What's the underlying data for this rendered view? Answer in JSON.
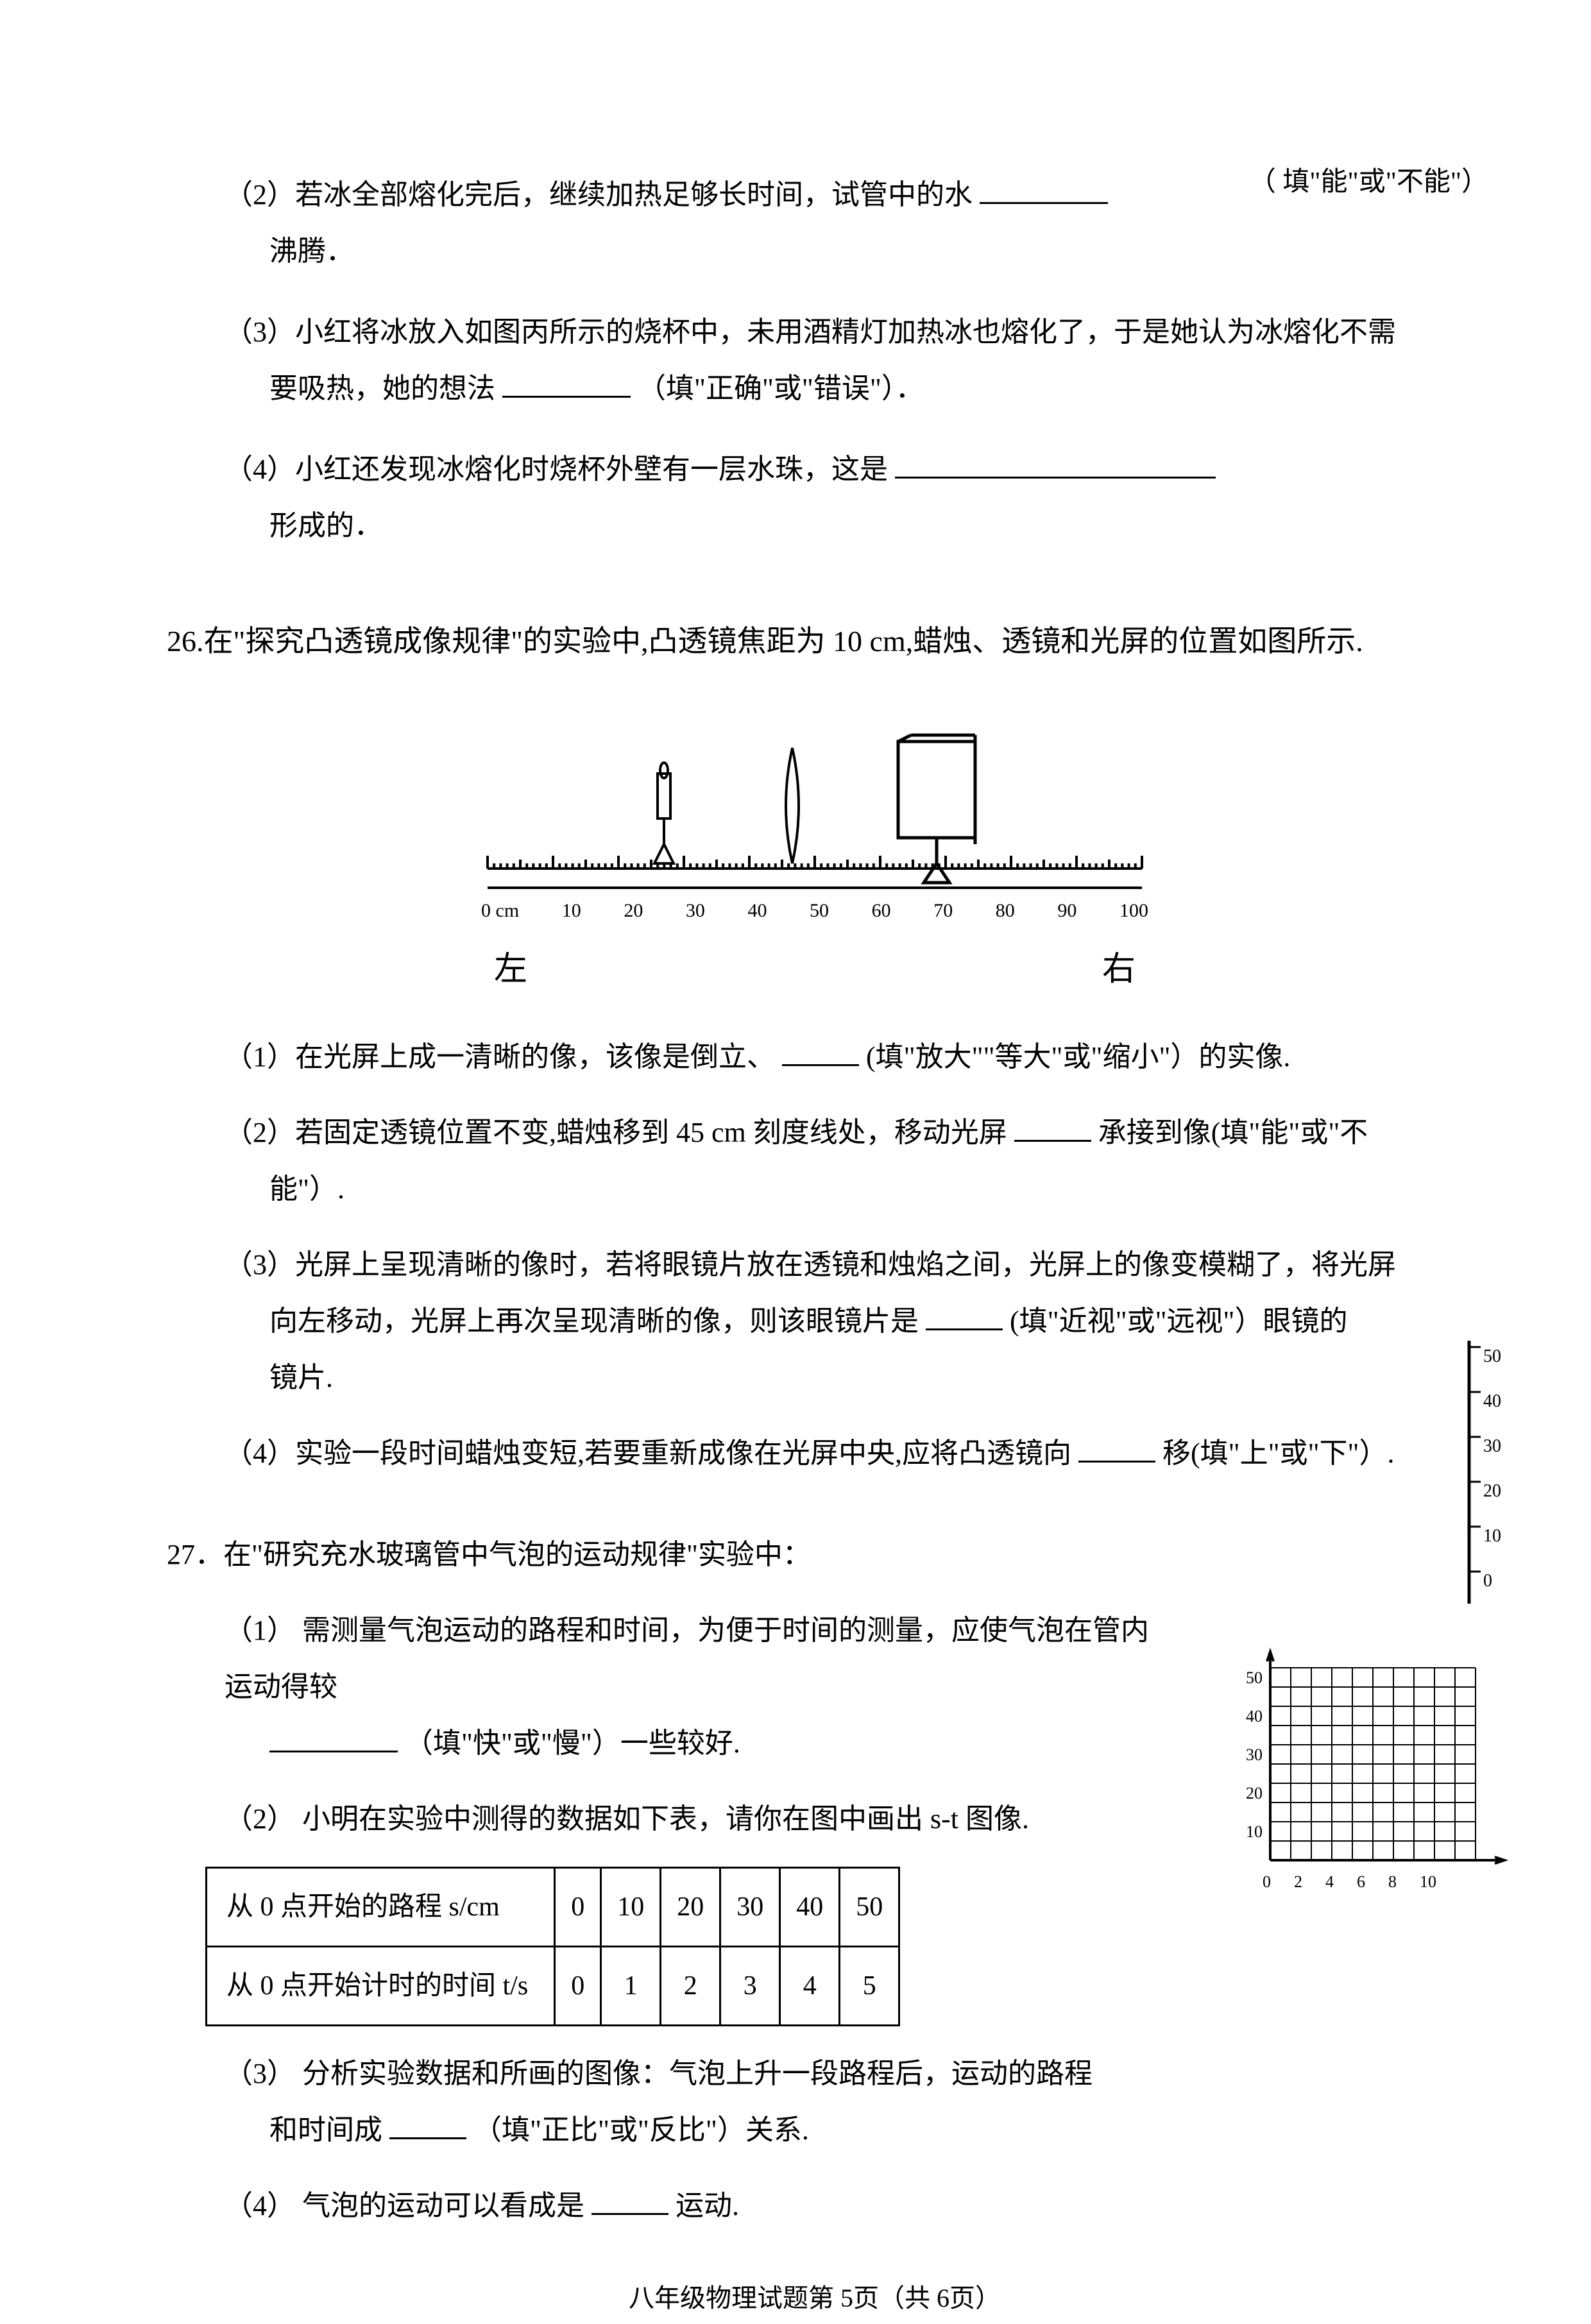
{
  "q25": {
    "p2_a": "（2）若冰全部熔化完后，继续加热足够长时间，试管中的水",
    "p2_hint_right": "（ 填\"能\"或\"不能\"）",
    "p2_b": "沸腾．",
    "p3_a": "（3）小红将冰放入如图丙所示的烧杯中，未用酒精灯加热冰也熔化了，于是她认为冰熔化不需",
    "p3_b": "要吸热，她的想法",
    "p3_hint": "（填\"正确\"或\"错误\"）．",
    "p4_a": "（4）小红还发现冰熔化时烧杯外壁有一层水珠，这是",
    "p4_b": "形成的．"
  },
  "q26": {
    "title": "26.在\"探究凸透镜成像规律\"的实验中,凸透镜焦距为 10 cm,蜡烛、透镜和光屏的位置如图所示.",
    "ruler": {
      "ticks": [
        "0 cm",
        "10",
        "20",
        "30",
        "40",
        "50",
        "60",
        "70",
        "80",
        "90",
        "100"
      ],
      "left_label": "左",
      "right_label": "右"
    },
    "p1": "（1）在光屏上成一清晰的像，该像是倒立、",
    "p1_hint": "(填\"放大\"\"等大\"或\"缩小\"）的实像.",
    "p2_a": "（2）若固定透镜位置不变,蜡烛移到 45 cm 刻度线处，移动光屏",
    "p2_hint": "承接到像(填\"能\"或\"不",
    "p2_b": "能\"）.",
    "p3_a": "（3）光屏上呈现清晰的像时，若将眼镜片放在透镜和烛焰之间，光屏上的像变模糊了，将光屏",
    "p3_b": "向左移动，光屏上再次呈现清晰的像，则该眼镜片是",
    "p3_hint": "(填\"近视\"或\"远视\"）眼镜的",
    "p3_c": "镜片.",
    "p4_a": "（4）实验一段时间蜡烛变短,若要重新成像在光屏中央,应将凸透镜向",
    "p4_hint": "移(填\"上\"或\"下\"）."
  },
  "q27": {
    "title": "27．在\"研究充水玻璃管中气泡的运动规律\"实验中：",
    "p1_a": "（1）  需测量气泡运动的路程和时间，为便于时间的测量，应使气泡在管内运动得较",
    "p1_hint": "（填\"快\"或\"慢\"）一些较好.",
    "p2": "（2）  小明在实验中测得的数据如下表，请你在图中画出 s-t 图像.",
    "table": {
      "row1_label": "从 0 点开始的路程 s/cm",
      "row1": [
        "0",
        "10",
        "20",
        "30",
        "40",
        "50"
      ],
      "row2_label": "从 0 点开始计时的时间 t/s",
      "row2": [
        "0",
        "1",
        "2",
        "3",
        "4",
        "5"
      ]
    },
    "p3_a": "（3）  分析实验数据和所画的图像：气泡上升一段路程后，运动的路程",
    "p3_b": "和时间成",
    "p3_hint": "（填\"正比\"或\"反比\"）关系.",
    "p4_a": "（4）  气泡的运动可以看成是",
    "p4_b": "运动.",
    "tube_labels": [
      "50",
      "40",
      "30",
      "20",
      "10",
      "0"
    ],
    "grid_y": [
      "50",
      "40",
      "30",
      "20",
      "10",
      "0"
    ],
    "grid_x": [
      "0",
      "2",
      "4",
      "6",
      "8",
      "10"
    ]
  },
  "footer": "八年级物理试题第 5页（共 6页）"
}
